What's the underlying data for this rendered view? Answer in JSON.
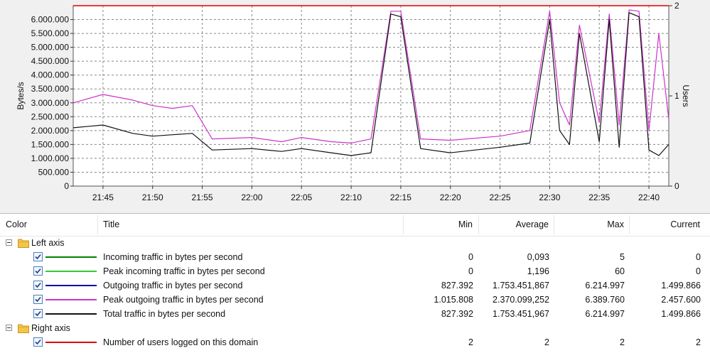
{
  "chart": {
    "y_left_label": "Bytes/s",
    "y_right_label": "Users",
    "y_left_ticks": [
      "6.000.000",
      "5.500.000",
      "5.000.000",
      "4.500.000",
      "4.000.000",
      "3.500.000",
      "3.000.000",
      "2.500.000",
      "2.000.000",
      "1.500.000",
      "1.000.000",
      "500.000",
      "0"
    ],
    "y_right_ticks": [
      "2",
      "1",
      "0"
    ],
    "x_ticks": [
      "21:45",
      "21:50",
      "21:55",
      "22:00",
      "22:05",
      "22:10",
      "22:15",
      "22:20",
      "22:25",
      "22:30",
      "22:35",
      "22:40"
    ]
  },
  "chart_data": {
    "type": "line",
    "x_start": "21:42",
    "x_end": "22:42",
    "ylim": [
      0,
      6500000
    ],
    "ylabel": "Bytes/s",
    "y2lim": [
      0,
      2
    ],
    "y2label": "Users",
    "x": [
      "21:42",
      "21:45",
      "21:48",
      "21:50",
      "21:52",
      "21:54",
      "21:56",
      "22:00",
      "22:03",
      "22:05",
      "22:08",
      "22:10",
      "22:12",
      "22:14",
      "22:15",
      "22:17",
      "22:20",
      "22:25",
      "22:28",
      "22:30",
      "22:31",
      "22:32",
      "22:33",
      "22:35",
      "22:36",
      "22:37",
      "22:38",
      "22:39",
      "22:40",
      "22:41",
      "22:42"
    ],
    "series": [
      {
        "name": "Peak outgoing traffic in bytes per second",
        "color": "#cc33cc",
        "values": [
          3000000,
          3300000,
          3100000,
          2900000,
          2800000,
          2900000,
          1700000,
          1750000,
          1600000,
          1750000,
          1600000,
          1550000,
          1700000,
          6300000,
          6300000,
          1700000,
          1650000,
          1800000,
          2000000,
          6300000,
          3000000,
          2200000,
          5800000,
          2300000,
          6200000,
          2200000,
          6350000,
          6300000,
          2000000,
          5500000,
          2400000
        ]
      },
      {
        "name": "Total traffic in bytes per second",
        "color": "#111111",
        "values": [
          2100000,
          2200000,
          1900000,
          1800000,
          1850000,
          1900000,
          1300000,
          1350000,
          1250000,
          1350000,
          1200000,
          1100000,
          1200000,
          6200000,
          6100000,
          1350000,
          1200000,
          1400000,
          1550000,
          6000000,
          2000000,
          1500000,
          5500000,
          1600000,
          6000000,
          1400000,
          6250000,
          6100000,
          1300000,
          1100000,
          1500000
        ]
      },
      {
        "name": "Number of users logged on this domain",
        "color": "#dd0000",
        "axis": "right",
        "values": [
          2,
          2,
          2,
          2,
          2,
          2,
          2,
          2,
          2,
          2,
          2,
          2,
          2,
          2,
          2,
          2,
          2,
          2,
          2,
          2,
          2,
          2,
          2,
          2,
          2,
          2,
          2,
          2,
          2,
          2,
          2
        ]
      }
    ]
  },
  "legend": {
    "headers": {
      "color": "Color",
      "title": "Title",
      "min": "Min",
      "average": "Average",
      "max": "Max",
      "current": "Current"
    },
    "groups": [
      {
        "label": "Left axis",
        "rows": [
          {
            "title": "Incoming traffic in bytes per second",
            "color": "#008000",
            "min": "0",
            "average": "0,093",
            "max": "5",
            "current": "0"
          },
          {
            "title": "Peak incoming traffic in bytes per second",
            "color": "#33cc33",
            "min": "0",
            "average": "1,196",
            "max": "60",
            "current": "0"
          },
          {
            "title": "Outgoing traffic in bytes per second",
            "color": "#0000aa",
            "min": "827.392",
            "average": "1.753.451,867",
            "max": "6.214.997",
            "current": "1.499.866"
          },
          {
            "title": "Peak outgoing traffic in bytes per second",
            "color": "#cc33cc",
            "min": "1.015.808",
            "average": "2.370.099,252",
            "max": "6.389.760",
            "current": "2.457.600"
          },
          {
            "title": "Total traffic in bytes per second",
            "color": "#111111",
            "min": "827.392",
            "average": "1.753.451,967",
            "max": "6.214.997",
            "current": "1.499.866"
          }
        ]
      },
      {
        "label": "Right axis",
        "rows": [
          {
            "title": "Number of users logged on this domain",
            "color": "#dd0000",
            "min": "2",
            "average": "2",
            "max": "2",
            "current": "2"
          }
        ]
      }
    ]
  }
}
